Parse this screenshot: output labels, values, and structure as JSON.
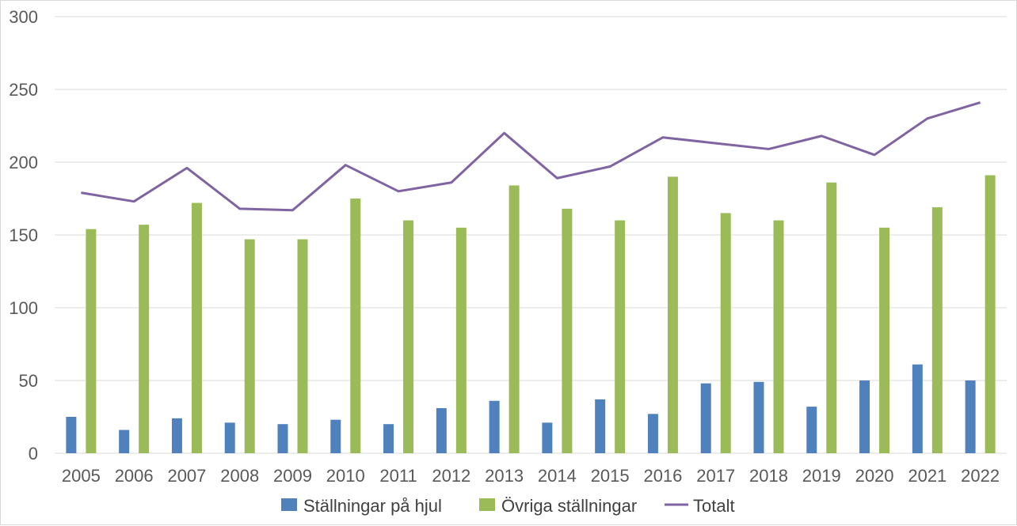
{
  "chart_data": {
    "type": "bar",
    "categories": [
      "2005",
      "2006",
      "2007",
      "2008",
      "2009",
      "2010",
      "2011",
      "2012",
      "2013",
      "2014",
      "2015",
      "2016",
      "2017",
      "2018",
      "2019",
      "2020",
      "2021",
      "2022"
    ],
    "series": [
      {
        "name": "Ställningar på hjul",
        "type": "bar",
        "color": "#4f81bd",
        "values": [
          25,
          16,
          24,
          21,
          20,
          23,
          20,
          31,
          36,
          21,
          37,
          27,
          48,
          49,
          32,
          50,
          61,
          50
        ]
      },
      {
        "name": "Övriga ställningar",
        "type": "bar",
        "color": "#9bbb59",
        "values": [
          154,
          157,
          172,
          147,
          147,
          175,
          160,
          155,
          184,
          168,
          160,
          190,
          165,
          160,
          186,
          155,
          169,
          191
        ]
      },
      {
        "name": "Totalt",
        "type": "line",
        "color": "#8064a2",
        "values": [
          179,
          173,
          196,
          168,
          167,
          198,
          180,
          186,
          220,
          189,
          197,
          217,
          213,
          209,
          218,
          205,
          230,
          241
        ]
      }
    ],
    "ylim": [
      0,
      300
    ],
    "yticks": [
      0,
      50,
      100,
      150,
      200,
      250,
      300
    ],
    "grid": true,
    "legend": "bottom"
  }
}
